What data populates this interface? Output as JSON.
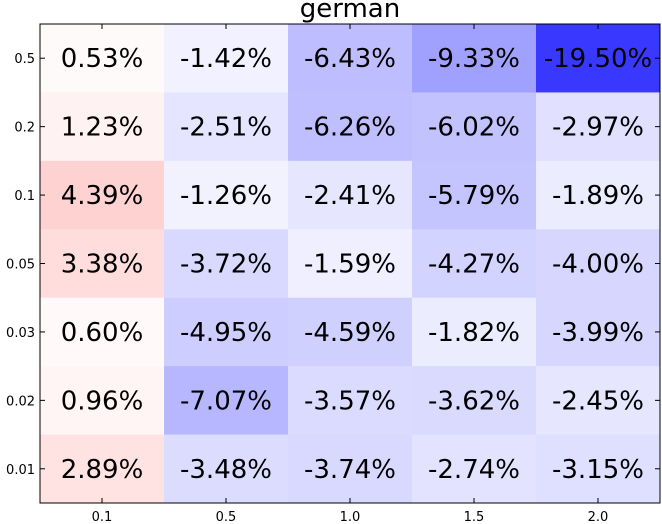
{
  "chart_data": {
    "type": "heatmap",
    "title": "german",
    "xlabel": "",
    "ylabel": "",
    "x_categories": [
      "0.1",
      "0.5",
      "1.0",
      "1.5",
      "2.0"
    ],
    "y_categories": [
      "0.5",
      "0.2",
      "0.1",
      "0.05",
      "0.03",
      "0.02",
      "0.01"
    ],
    "values": [
      [
        0.53,
        -1.42,
        -6.43,
        -9.33,
        -19.5
      ],
      [
        1.23,
        -2.51,
        -6.26,
        -6.02,
        -2.97
      ],
      [
        4.39,
        -1.26,
        -2.41,
        -5.79,
        -1.89
      ],
      [
        3.38,
        -3.72,
        -1.59,
        -4.27,
        -4.0
      ],
      [
        0.6,
        -4.95,
        -4.59,
        -1.82,
        -3.99
      ],
      [
        0.96,
        -7.07,
        -3.57,
        -3.62,
        -2.45
      ],
      [
        2.89,
        -3.48,
        -3.74,
        -2.74,
        -3.15
      ]
    ],
    "cell_labels": [
      [
        "0.53%",
        "-1.42%",
        "-6.43%",
        "-9.33%",
        "-19.50%"
      ],
      [
        "1.23%",
        "-2.51%",
        "-6.26%",
        "-6.02%",
        "-2.97%"
      ],
      [
        "4.39%",
        "-1.26%",
        "-2.41%",
        "-5.79%",
        "-1.89%"
      ],
      [
        "3.38%",
        "-3.72%",
        "-1.59%",
        "-4.27%",
        "-4.00%"
      ],
      [
        "0.60%",
        "-4.95%",
        "-4.59%",
        "-1.82%",
        "-3.99%"
      ],
      [
        "0.96%",
        "-7.07%",
        "-3.57%",
        "-3.62%",
        "-2.45%"
      ],
      [
        "2.89%",
        "-3.48%",
        "-3.74%",
        "-2.74%",
        "-3.15%"
      ]
    ],
    "color_scale": "bwr",
    "color_range": [
      -20,
      20
    ],
    "colors": {
      "negative_max": "#3333ff",
      "neutral": "#ffffff",
      "positive_max": "#ff3333"
    },
    "grid": false,
    "legend": "none"
  }
}
